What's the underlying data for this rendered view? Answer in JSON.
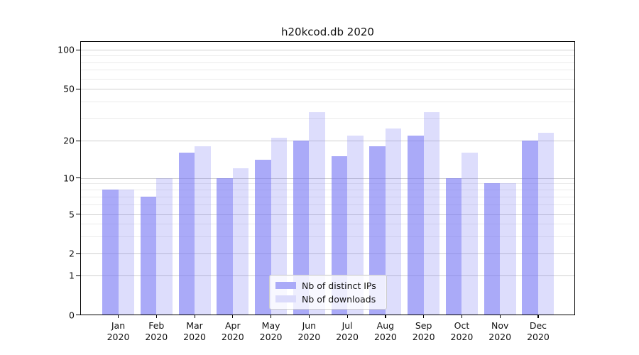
{
  "chart_data": {
    "type": "bar",
    "title": "h20kcod.db 2020",
    "x_tick_line2": "2020",
    "categories": [
      "Jan",
      "Feb",
      "Mar",
      "Apr",
      "May",
      "Jun",
      "Jul",
      "Aug",
      "Sep",
      "Oct",
      "Nov",
      "Dec"
    ],
    "series": [
      {
        "name": "Nb of distinct IPs",
        "swatch_color": "#aaaaf8",
        "fill": "rgba(113,113,244,0.6)",
        "values": [
          8,
          7,
          16,
          10,
          14,
          20,
          15,
          18,
          22,
          10,
          9,
          20
        ]
      },
      {
        "name": "Nb of downloads",
        "swatch_color": "#dbdbfb",
        "fill": "rgba(113,113,244,0.24)",
        "values": [
          8,
          10,
          18,
          12,
          21,
          33,
          22,
          25,
          33,
          16,
          9,
          23
        ]
      }
    ],
    "y_ticks": [
      "100",
      "50",
      "20",
      "10",
      "5",
      "2",
      "1",
      "0"
    ],
    "y_minor_gridlines": [
      3,
      4,
      6,
      7,
      8,
      9,
      30,
      40,
      60,
      70,
      80,
      90
    ],
    "y_scale": "symlog",
    "ylim": [
      0,
      100
    ],
    "grid": true,
    "legend_position": "lower center"
  }
}
